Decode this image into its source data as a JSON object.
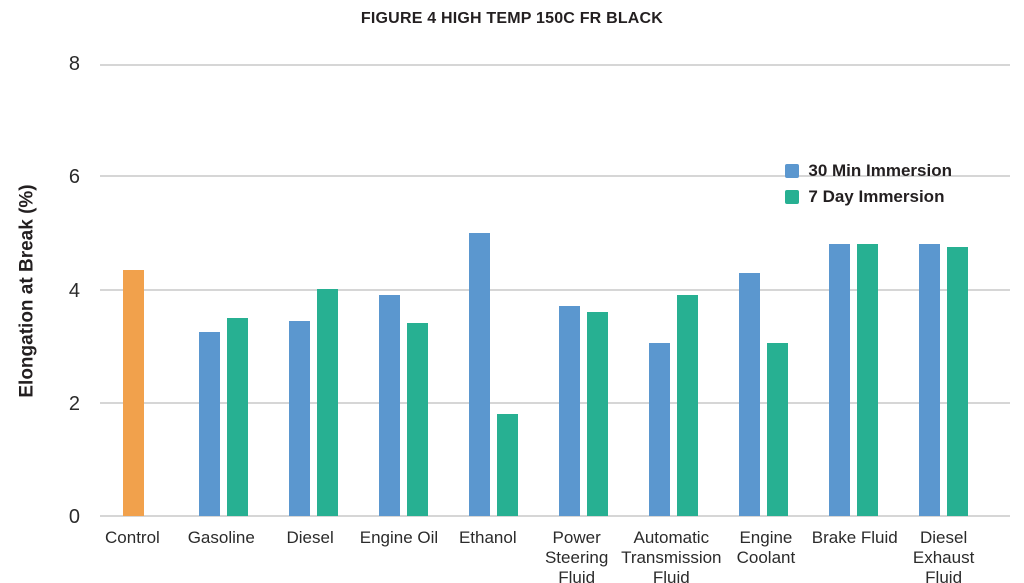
{
  "page": {
    "background_color": "#ffffff"
  },
  "chart_data": {
    "type": "bar",
    "title": "FIGURE 4 HIGH TEMP 150C FR BLACK",
    "ylabel": "Elongation at Break (%)",
    "xlabel": "",
    "ylim": [
      0,
      8
    ],
    "yticks": [
      0,
      2,
      4,
      6,
      8
    ],
    "grid": true,
    "legend_position": "top-right",
    "categories": [
      "Control",
      "Gasoline",
      "Diesel",
      "Engine Oil",
      "Ethanol",
      "Power Steering Fluid",
      "Automatic Transmission Fluid",
      "Engine Coolant",
      "Brake Fluid",
      "Diesel Exhaust Fluid"
    ],
    "control": {
      "name": "Control",
      "value": 4.35,
      "color": "#F1A14C"
    },
    "series": [
      {
        "name": "30 Min Immersion",
        "color": "#5B97CF",
        "values": [
          null,
          3.25,
          3.45,
          3.9,
          5.0,
          3.7,
          3.05,
          4.3,
          4.8,
          4.8
        ]
      },
      {
        "name": "7 Day Immersion",
        "color": "#27B092",
        "values": [
          null,
          3.5,
          4.0,
          3.4,
          1.8,
          3.6,
          3.9,
          3.05,
          4.8,
          4.75
        ]
      }
    ],
    "colors": {
      "gridline": "#d6d6d6",
      "text": "#231f20"
    }
  }
}
